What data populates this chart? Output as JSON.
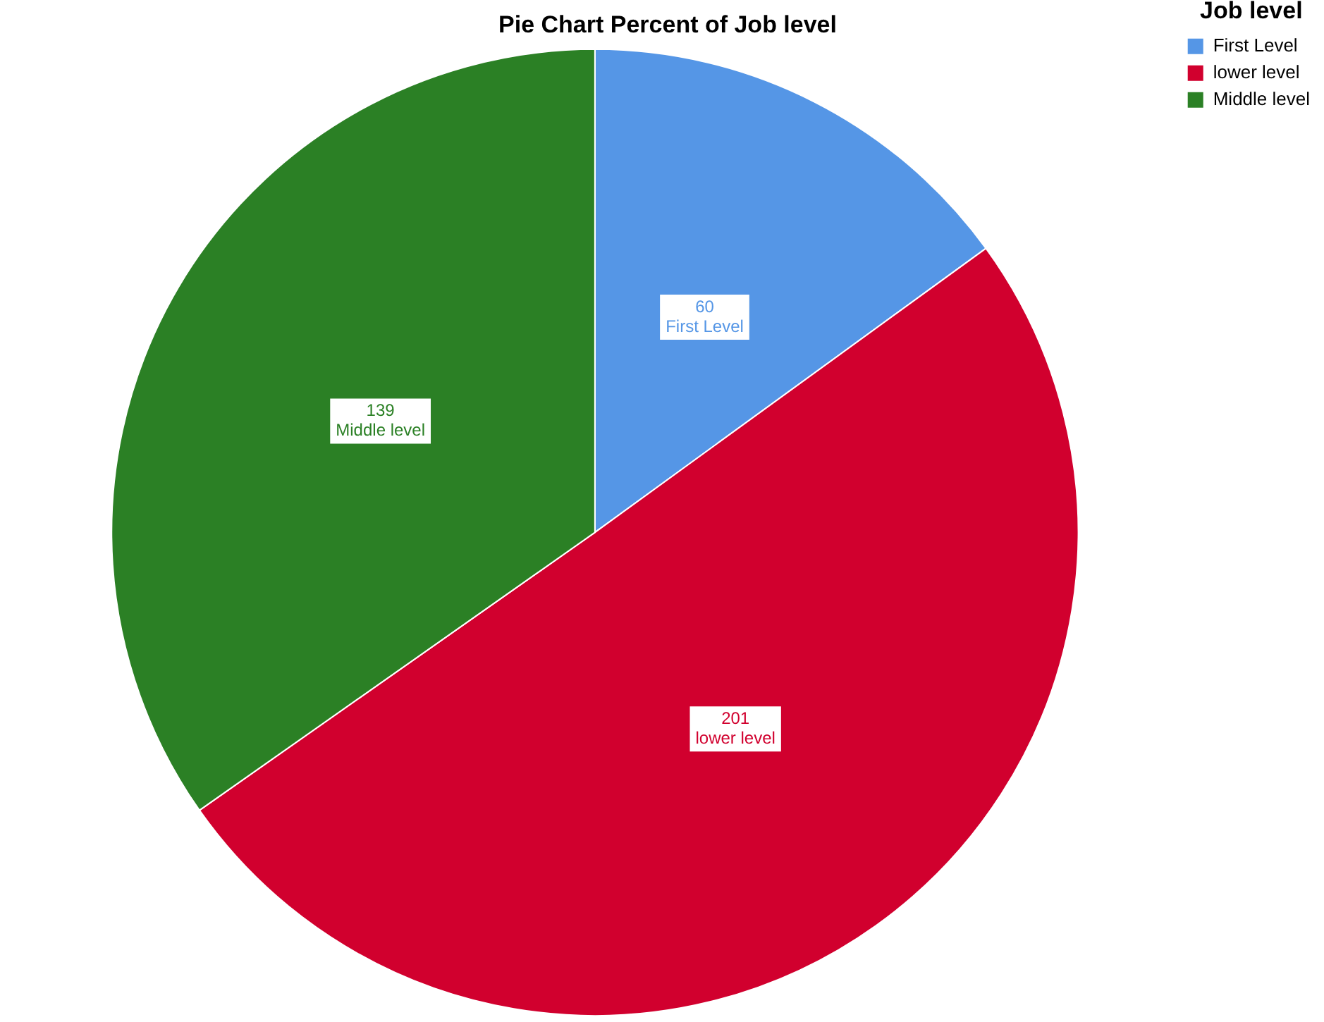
{
  "chart_data": {
    "type": "pie",
    "title": "Pie Chart Percent of Job level",
    "legend_title": "Job level",
    "legend": "top right",
    "categories": [
      "First Level",
      "lower level",
      "Middle level"
    ],
    "values": [
      60,
      201,
      139
    ],
    "colors": [
      "#5596e6",
      "#d1002e",
      "#2b8025"
    ],
    "data_labels": true
  }
}
